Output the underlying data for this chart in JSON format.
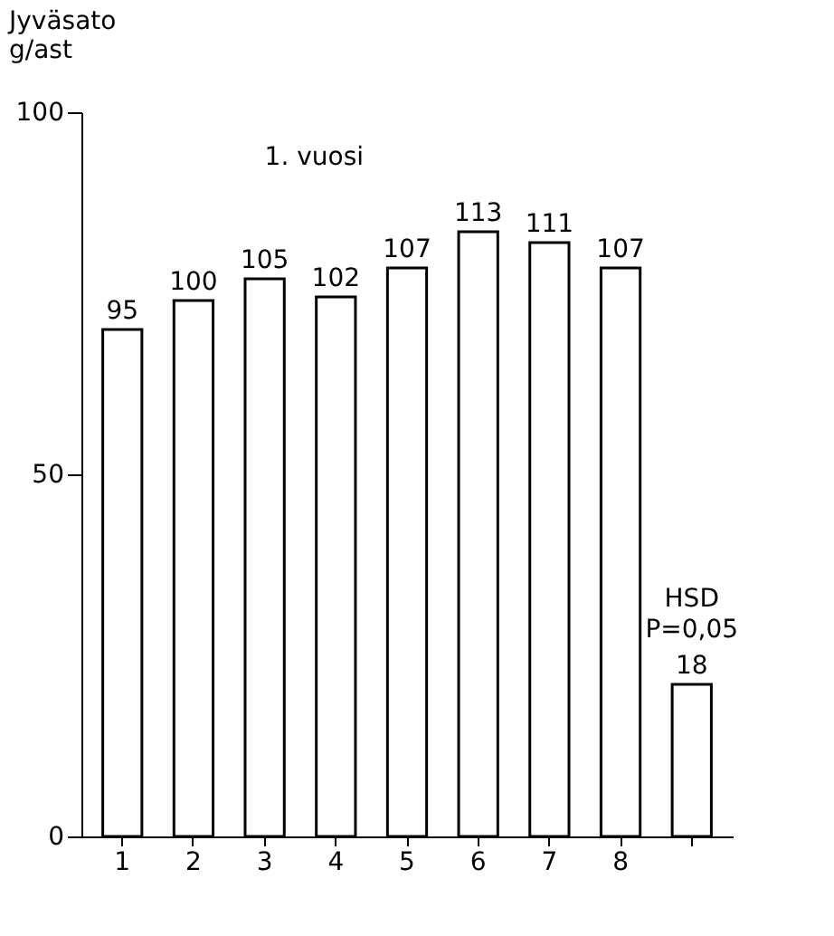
{
  "chart_data": {
    "type": "bar",
    "ylabel": "Jyväsato\ng/ast",
    "categories": [
      "1",
      "2",
      "3",
      "4",
      "5",
      "6",
      "7",
      "8",
      null
    ],
    "values": [
      70,
      74,
      77,
      74.5,
      78.5,
      83.5,
      82,
      78.5,
      21
    ],
    "color": "#ffffff",
    "ylim": [
      0,
      100
    ],
    "yticks": [
      0,
      50,
      100
    ],
    "grid": false,
    "annotations": [
      "1. vuosi",
      {
        "text": "95",
        "x": "1",
        "y": 70
      },
      {
        "text": "100",
        "x": "2",
        "y": 74
      },
      {
        "text": "105",
        "x": "3",
        "y": 77
      },
      {
        "text": "102",
        "x": "4",
        "y": 74.5
      },
      {
        "text": "107",
        "x": "5",
        "y": 78.5
      },
      {
        "text": "113",
        "x": "6",
        "y": 83.5
      },
      {
        "text": "111",
        "x": "7",
        "y": 82
      },
      {
        "text": "107",
        "x": "8",
        "y": 78.5
      },
      "HSD\nP=0,05",
      {
        "text": "18",
        "y": 21
      }
    ]
  }
}
